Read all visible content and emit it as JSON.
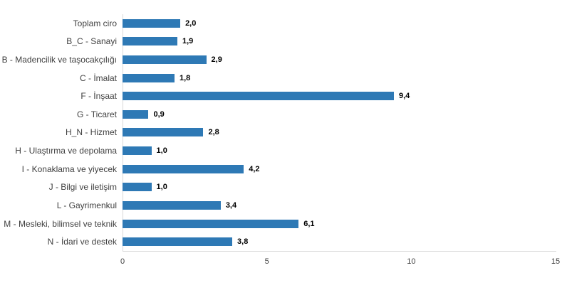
{
  "chart_data": {
    "type": "bar",
    "orientation": "horizontal",
    "title": "",
    "xlabel": "",
    "ylabel": "",
    "xlim": [
      0,
      15
    ],
    "x_ticks": [
      "0",
      "5",
      "10",
      "15"
    ],
    "x_tick_values": [
      0,
      5,
      10,
      15
    ],
    "grid": false,
    "legend": false,
    "categories": [
      "Toplam ciro",
      "B_C - Sanayi",
      "B - Madencilik ve taşocakçılığı",
      "C - İmalat",
      "F - İnşaat",
      "G - Ticaret",
      "H_N - Hizmet",
      "H - Ulaştırma ve depolama",
      "I - Konaklama ve yiyecek",
      "J - Bilgi ve iletişim",
      "L - Gayrimenkul",
      "M - Mesleki, bilimsel ve teknik",
      "N - İdari ve destek"
    ],
    "values": [
      2.0,
      1.9,
      2.9,
      1.8,
      9.4,
      0.9,
      2.8,
      1.0,
      4.2,
      1.0,
      3.4,
      6.1,
      3.8
    ],
    "value_labels": [
      "2,0",
      "1,9",
      "2,9",
      "1,8",
      "9,4",
      "0,9",
      "2,8",
      "1,0",
      "4,2",
      "1,0",
      "3,4",
      "6,1",
      "3,8"
    ],
    "colors": {
      "bar": "#2e79b5",
      "value_label": "#000000",
      "category_label": "#3f3f3f",
      "axis_line": "#d9d9d9",
      "tick_label": "#404040",
      "background": "#ffffff"
    }
  }
}
